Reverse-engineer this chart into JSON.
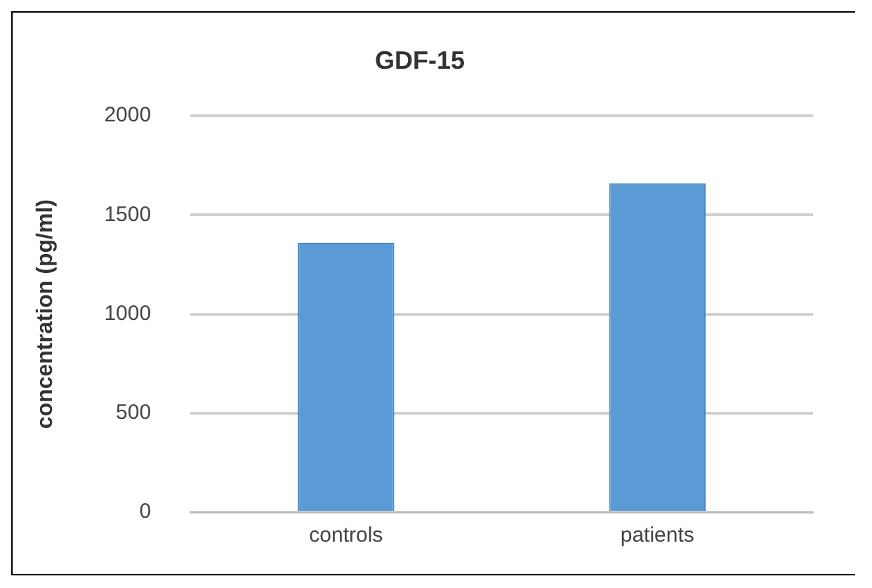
{
  "chart_data": {
    "type": "bar",
    "title": "GDF-15",
    "ylabel": "concentration (pg/ml)",
    "categories": [
      "controls",
      "patients"
    ],
    "values": [
      1360,
      1660
    ],
    "color": "#5b9bd5",
    "ylim": [
      0,
      2000
    ],
    "yticks": [
      0,
      500,
      1000,
      1500,
      2000
    ],
    "grid": "y"
  }
}
